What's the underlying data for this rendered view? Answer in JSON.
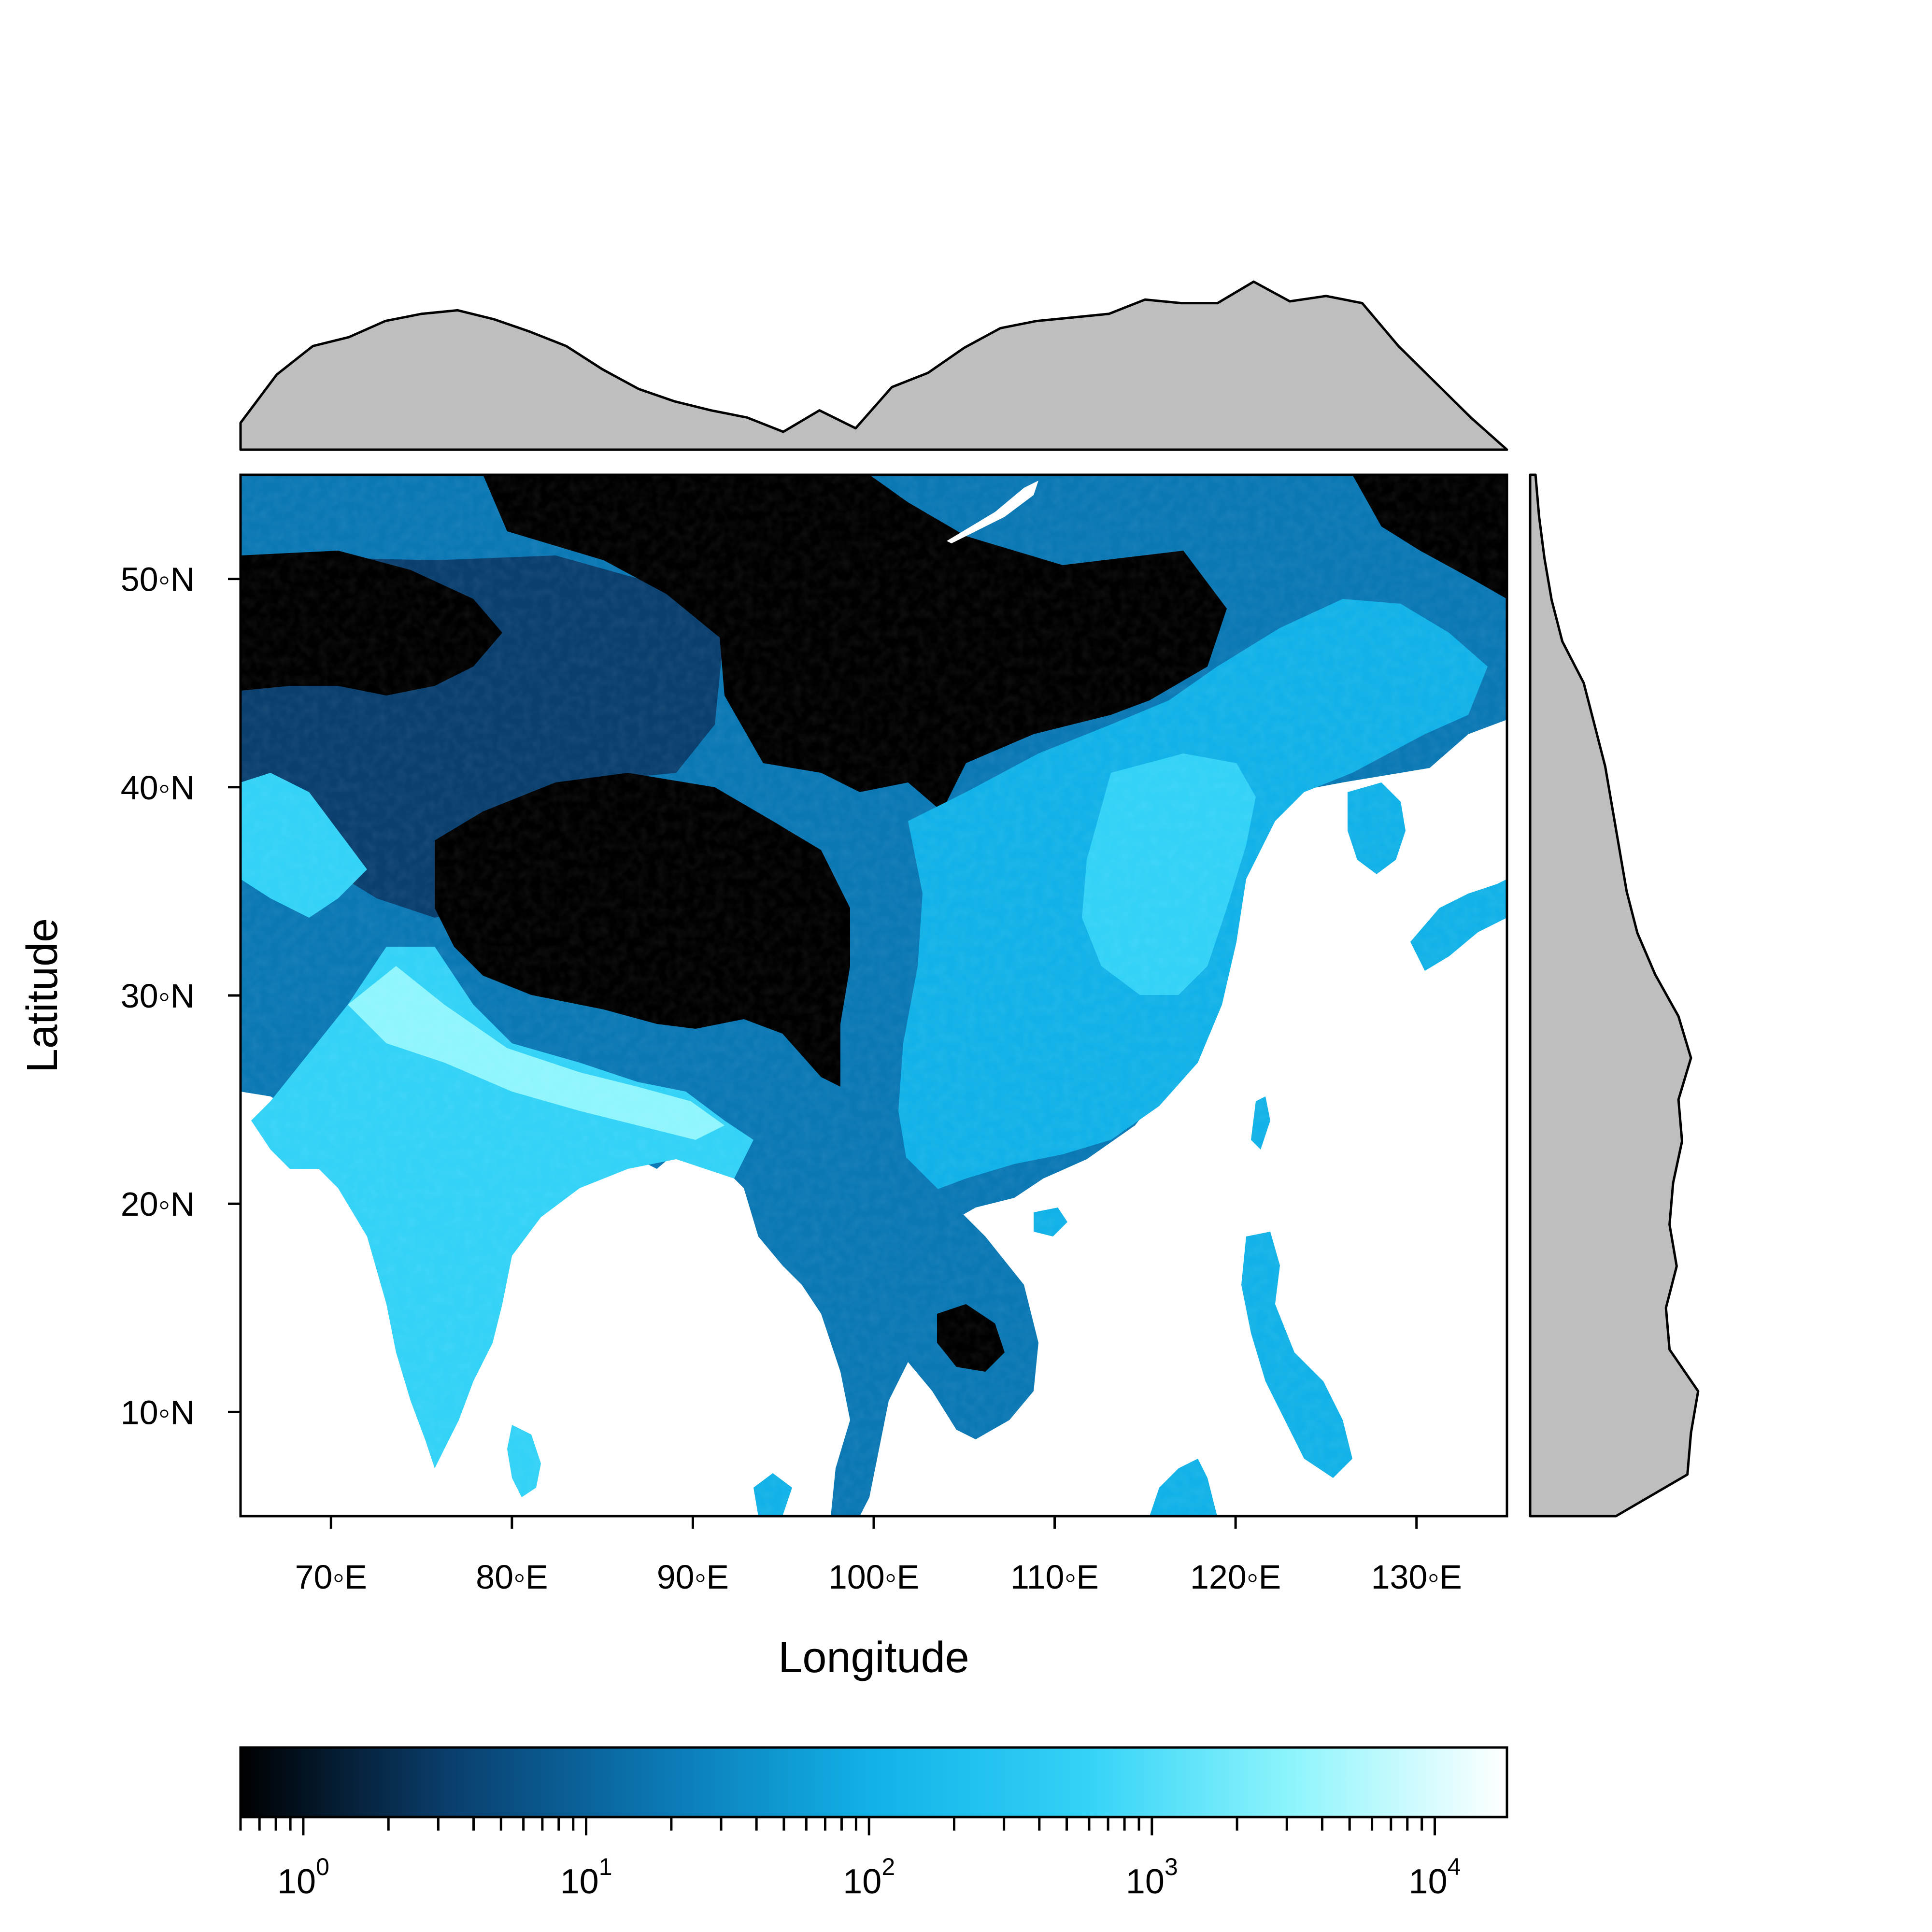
{
  "axes": {
    "xlabel": "Longitude",
    "ylabel": "Latitude",
    "x_range": [
      65,
      135
    ],
    "y_range": [
      5,
      55
    ],
    "x_ticks": [
      {
        "value": 70,
        "label": "70◦E"
      },
      {
        "value": 80,
        "label": "80◦E"
      },
      {
        "value": 90,
        "label": "90◦E"
      },
      {
        "value": 100,
        "label": "100◦E"
      },
      {
        "value": 110,
        "label": "110◦E"
      },
      {
        "value": 120,
        "label": "120◦E"
      },
      {
        "value": 130,
        "label": "130◦E"
      }
    ],
    "y_ticks": [
      {
        "value": 10,
        "label": "10◦N"
      },
      {
        "value": 20,
        "label": "20◦N"
      },
      {
        "value": 30,
        "label": "30◦N"
      },
      {
        "value": 40,
        "label": "40◦N"
      },
      {
        "value": 50,
        "label": "50◦N"
      }
    ]
  },
  "colorbar": {
    "scale": "log",
    "range": [
      0.6,
      18000
    ],
    "colors": [
      "#000000",
      "#0a3f6e",
      "#0b78b4",
      "#12b2e8",
      "#33d2f7",
      "#8ff5fc",
      "#ffffff"
    ],
    "labels": [
      {
        "value": 1,
        "base": "10",
        "exp": "0"
      },
      {
        "value": 10,
        "base": "10",
        "exp": "1"
      },
      {
        "value": 100,
        "base": "10",
        "exp": "2"
      },
      {
        "value": 1000,
        "base": "10",
        "exp": "3"
      },
      {
        "value": 10000,
        "base": "10",
        "exp": "4"
      }
    ]
  },
  "colors": {
    "marginal_fill": "#bebebe",
    "dark": "#000000",
    "deep": "#0a3f6e",
    "mid": "#0b78b4",
    "bright": "#12b2e8",
    "cyan": "#33d2f7",
    "pale": "#8ff5fc",
    "ocean": "#ffffff"
  },
  "marginal_longitude": {
    "description_x": "longitude",
    "x": [
      65,
      67,
      69,
      71,
      73,
      75,
      77,
      79,
      81,
      83,
      85,
      87,
      89,
      91,
      93,
      95,
      97,
      99,
      101,
      103,
      105,
      107,
      109,
      111,
      113,
      115,
      117,
      119,
      121,
      123,
      125,
      127,
      129,
      131,
      133,
      135
    ],
    "level": [
      0.15,
      0.42,
      0.58,
      0.63,
      0.72,
      0.76,
      0.78,
      0.73,
      0.66,
      0.58,
      0.45,
      0.34,
      0.27,
      0.22,
      0.18,
      0.1,
      0.22,
      0.12,
      0.35,
      0.43,
      0.57,
      0.68,
      0.72,
      0.74,
      0.76,
      0.84,
      0.82,
      0.82,
      0.94,
      0.83,
      0.86,
      0.82,
      0.58,
      0.38,
      0.18,
      0.0
    ]
  },
  "marginal_latitude": {
    "y": [
      55,
      53,
      51,
      49,
      47,
      45,
      43,
      41,
      39,
      37,
      35,
      33,
      31,
      29,
      27,
      25,
      23,
      21,
      19,
      17,
      15,
      13,
      11,
      9,
      7,
      5
    ],
    "level": [
      0.03,
      0.05,
      0.08,
      0.12,
      0.18,
      0.3,
      0.36,
      0.42,
      0.46,
      0.5,
      0.54,
      0.6,
      0.7,
      0.83,
      0.9,
      0.83,
      0.85,
      0.8,
      0.78,
      0.82,
      0.76,
      0.78,
      0.94,
      0.9,
      0.88,
      0.48
    ]
  }
}
